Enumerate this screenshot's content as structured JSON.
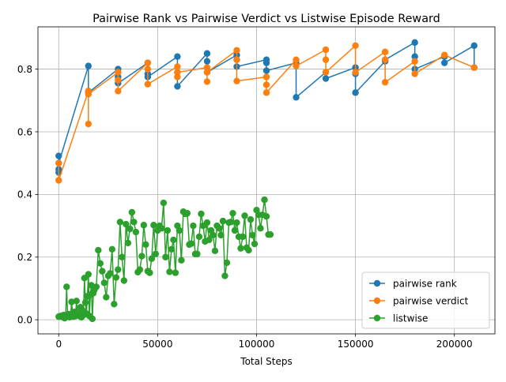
{
  "chart_data": {
    "type": "line",
    "title": "Pairwise Rank vs Pairwise Verdict vs Listwise Episode Reward",
    "xlabel": "Total Steps",
    "ylabel": "",
    "xlim": [
      -10500,
      220500
    ],
    "ylim": [
      -0.045,
      0.935
    ],
    "xticks": [
      0,
      50000,
      100000,
      150000,
      200000
    ],
    "xtick_labels": [
      "0",
      "50000",
      "100000",
      "150000",
      "200000"
    ],
    "yticks": [
      0.0,
      0.2,
      0.4,
      0.6,
      0.8
    ],
    "ytick_labels": [
      "0.0",
      "0.2",
      "0.4",
      "0.6",
      "0.8"
    ],
    "grid": true,
    "legend_position": "lower right",
    "series": [
      {
        "name": "pairwise rank",
        "color": "#1f77b4",
        "x": [
          0,
          0,
          0,
          0,
          15000,
          15000,
          15000,
          30000,
          30000,
          30000,
          45000,
          45000,
          45000,
          60000,
          60000,
          60000,
          75000,
          75000,
          75000,
          90000,
          90000,
          90000,
          105000,
          105000,
          105000,
          120000,
          120000,
          135000,
          135000,
          150000,
          150000,
          150000,
          165000,
          165000,
          180000,
          180000,
          180000,
          195000,
          195000,
          210000,
          210000
        ],
        "y": [
          0.523,
          0.48,
          0.47,
          0.5,
          0.81,
          0.73,
          0.725,
          0.8,
          0.775,
          0.755,
          0.82,
          0.785,
          0.775,
          0.84,
          0.79,
          0.745,
          0.85,
          0.825,
          0.79,
          0.845,
          0.83,
          0.808,
          0.83,
          0.82,
          0.795,
          0.82,
          0.71,
          0.79,
          0.77,
          0.805,
          0.785,
          0.725,
          0.825,
          0.83,
          0.885,
          0.84,
          0.8,
          0.84,
          0.82,
          0.875,
          0.805
        ]
      },
      {
        "name": "pairwise verdict",
        "color": "#ff7f0e",
        "x": [
          0,
          0,
          15000,
          15000,
          15000,
          30000,
          30000,
          30000,
          45000,
          45000,
          45000,
          60000,
          60000,
          60000,
          75000,
          75000,
          75000,
          90000,
          90000,
          90000,
          105000,
          105000,
          105000,
          120000,
          120000,
          135000,
          135000,
          135000,
          150000,
          150000,
          165000,
          165000,
          165000,
          180000,
          180000,
          195000,
          210000
        ],
        "y": [
          0.5,
          0.445,
          0.73,
          0.625,
          0.72,
          0.79,
          0.765,
          0.73,
          0.82,
          0.8,
          0.752,
          0.808,
          0.775,
          0.79,
          0.805,
          0.76,
          0.79,
          0.86,
          0.83,
          0.762,
          0.775,
          0.75,
          0.725,
          0.83,
          0.81,
          0.862,
          0.83,
          0.79,
          0.875,
          0.79,
          0.855,
          0.83,
          0.758,
          0.825,
          0.785,
          0.845,
          0.805
        ]
      },
      {
        "name": "listwise",
        "color": "#2ca02c",
        "x": [
          0,
          1000,
          2000,
          2500,
          3000,
          3500,
          4000,
          4500,
          5000,
          5500,
          6000,
          6500,
          7000,
          7500,
          8000,
          8500,
          9000,
          9500,
          10000,
          10500,
          11000,
          11500,
          12000,
          12500,
          13000,
          13500,
          14000,
          14500,
          15000,
          15500,
          16000,
          16500,
          17000,
          17500,
          18000,
          19000,
          20000,
          21000,
          22000,
          23000,
          24000,
          25000,
          26000,
          27000,
          28000,
          29000,
          30000,
          31000,
          32000,
          33000,
          34000,
          35000,
          36000,
          37000,
          38000,
          39000,
          40000,
          41000,
          42000,
          43000,
          44000,
          45000,
          46000,
          47000,
          48000,
          49000,
          50000,
          51000,
          52000,
          53000,
          54000,
          55000,
          56000,
          57000,
          58000,
          59000,
          60000,
          61000,
          62000,
          63000,
          64000,
          65000,
          66000,
          67000,
          68000,
          69000,
          70000,
          71000,
          72000,
          73000,
          74000,
          75000,
          76000,
          77000,
          78000,
          79000,
          80000,
          81000,
          82000,
          83000,
          84000,
          85000,
          86000,
          87000,
          88000,
          89000,
          90000,
          91000,
          92000,
          93000,
          94000,
          95000,
          96000,
          97000,
          98000,
          99000,
          100000,
          101000,
          102000,
          103000,
          104000,
          105000,
          106000,
          107000
        ],
        "y": [
          0.01,
          0.012,
          0.008,
          0.015,
          0.005,
          0.01,
          0.105,
          0.012,
          0.018,
          0.008,
          0.012,
          0.057,
          0.018,
          0.01,
          0.025,
          0.012,
          0.06,
          0.015,
          0.022,
          0.012,
          0.04,
          0.008,
          0.03,
          0.015,
          0.133,
          0.055,
          0.02,
          0.075,
          0.145,
          0.012,
          0.08,
          0.11,
          0.003,
          0.085,
          0.095,
          0.105,
          0.222,
          0.18,
          0.155,
          0.118,
          0.072,
          0.14,
          0.148,
          0.225,
          0.05,
          0.135,
          0.16,
          0.312,
          0.2,
          0.125,
          0.305,
          0.245,
          0.29,
          0.343,
          0.312,
          0.28,
          0.152,
          0.16,
          0.203,
          0.302,
          0.24,
          0.155,
          0.15,
          0.195,
          0.302,
          0.21,
          0.285,
          0.3,
          0.292,
          0.373,
          0.2,
          0.285,
          0.153,
          0.225,
          0.255,
          0.15,
          0.3,
          0.285,
          0.19,
          0.345,
          0.338,
          0.34,
          0.24,
          0.243,
          0.3,
          0.21,
          0.21,
          0.265,
          0.338,
          0.3,
          0.25,
          0.31,
          0.255,
          0.285,
          0.27,
          0.22,
          0.3,
          0.292,
          0.27,
          0.315,
          0.14,
          0.182,
          0.31,
          0.312,
          0.34,
          0.285,
          0.31,
          0.265,
          0.228,
          0.265,
          0.332,
          0.23,
          0.222,
          0.32,
          0.27,
          0.242,
          0.35,
          0.335,
          0.292,
          0.335,
          0.383,
          0.33,
          0.272,
          0.272
        ]
      }
    ]
  }
}
